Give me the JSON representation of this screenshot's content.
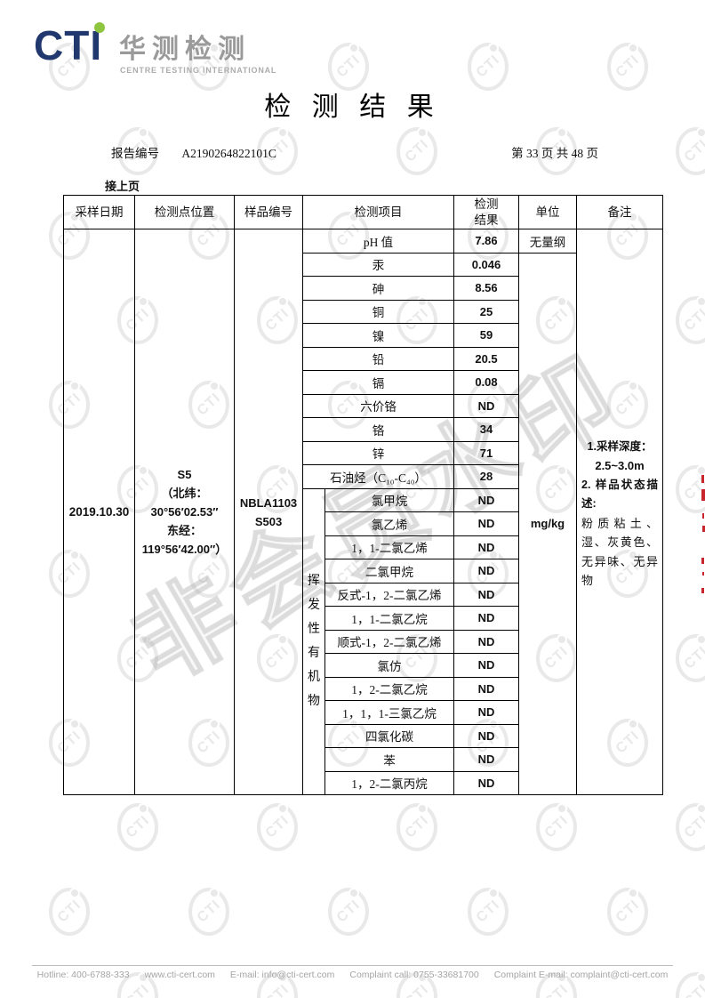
{
  "logo": {
    "cti": "CTI",
    "cn_name": "华测检测",
    "tagline": "CENTRE TESTING INTERNATIONAL"
  },
  "title": "检 测 结 果",
  "report": {
    "label": "报告编号",
    "number": "A2190264822101C",
    "page": "第 33 页 共 48 页"
  },
  "continued": "接上页",
  "table": {
    "headers": [
      "采样日期",
      "检测点位置",
      "样品编号",
      "检测项目",
      "检测\n结果",
      "单位",
      "备注"
    ],
    "sample_date": "2019.10.30",
    "location_lines": [
      "S5",
      "（北纬：",
      "30°56′02.53″",
      "东经：",
      "119°56′42.00″）"
    ],
    "sample_no_lines": [
      "NBLA1103",
      "S503"
    ],
    "voc_group_label": "挥发性有机物",
    "units": {
      "ph": "无量纲",
      "others": "mg/kg"
    },
    "rows": [
      {
        "item": "pH 值",
        "result": "7.86"
      },
      {
        "item": "汞",
        "result": "0.046"
      },
      {
        "item": "砷",
        "result": "8.56"
      },
      {
        "item": "铜",
        "result": "25"
      },
      {
        "item": "镍",
        "result": "59"
      },
      {
        "item": "铅",
        "result": "20.5"
      },
      {
        "item": "镉",
        "result": "0.08"
      },
      {
        "item": "六价铬",
        "result": "ND"
      },
      {
        "item": "铬",
        "result": "34"
      },
      {
        "item": "锌",
        "result": "71"
      },
      {
        "item": "石油烃（C₁₀-C₄₀）",
        "result": "28"
      },
      {
        "item": "氯甲烷",
        "result": "ND"
      },
      {
        "item": "氯乙烯",
        "result": "ND"
      },
      {
        "item": "1，1-二氯乙烯",
        "result": "ND"
      },
      {
        "item": "二氯甲烷",
        "result": "ND"
      },
      {
        "item": "反式-1，2-二氯乙烯",
        "result": "ND"
      },
      {
        "item": "1，1-二氯乙烷",
        "result": "ND"
      },
      {
        "item": "顺式-1，2-二氯乙烯",
        "result": "ND"
      },
      {
        "item": "氯仿",
        "result": "ND"
      },
      {
        "item": "1，2-二氯乙烷",
        "result": "ND"
      },
      {
        "item": "1，1，1-三氯乙烷",
        "result": "ND"
      },
      {
        "item": "四氯化碳",
        "result": "ND"
      },
      {
        "item": "苯",
        "result": "ND"
      },
      {
        "item": "1，2-二氯丙烷",
        "result": "ND"
      }
    ],
    "remark": {
      "depth_label": "1.采样深度：",
      "depth_value": "2.5~3.0m",
      "state_label": "2. 样品状态描述:",
      "state_value": "粉质粘土、湿、灰黄色、无异味、无异物"
    }
  },
  "watermark": {
    "big_text": "非会员水印",
    "circle_text": "CTI"
  },
  "footer": {
    "items": [
      "Hotline: 400-6788-333",
      "www.cti-cert.com",
      "E-mail: info@cti-cert.com",
      "Complaint call: 0755-33681700",
      "Complaint E-mail: complaint@cti-cert.com"
    ]
  },
  "colors": {
    "brand_navy": "#20386e",
    "brand_green": "#8ec63f",
    "seal_red": "#c9252c"
  }
}
